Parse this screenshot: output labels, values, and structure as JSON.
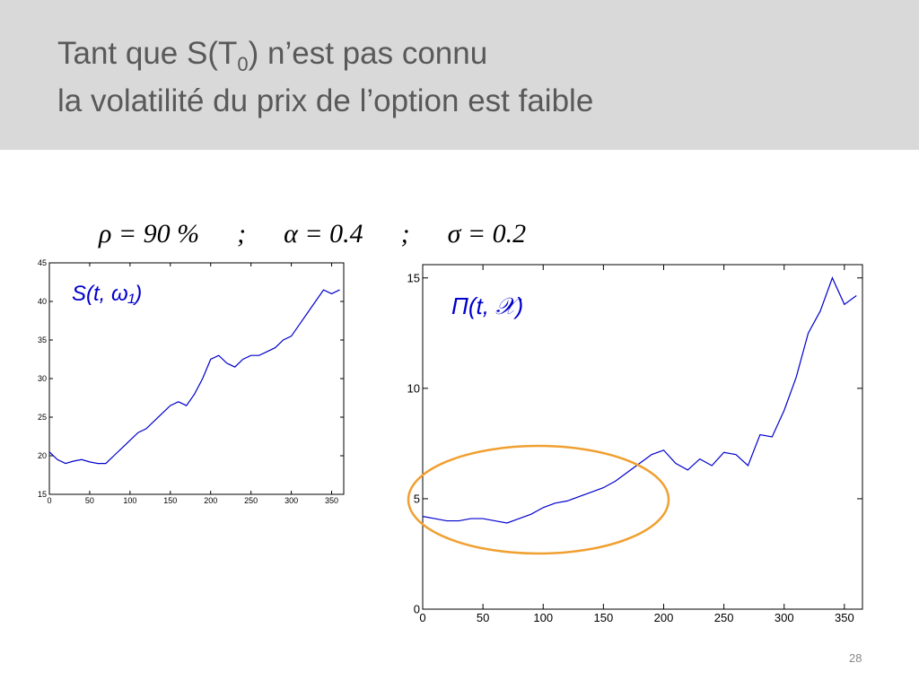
{
  "slide": {
    "title_line1": {
      "before": "Tant que S(T",
      "sub": "0",
      "after": ") n’est pas connu"
    },
    "title_line2": "la volatilité du prix de l’option est faible",
    "parameters": [
      "ρ = 90 %",
      ";",
      "α = 0.4",
      ";",
      "σ = 0.2"
    ],
    "page_number": "28"
  },
  "chart_data": [
    {
      "type": "line",
      "annotation": "S(t, ω₁)",
      "color": "#0000cc",
      "x": [
        0,
        10,
        20,
        30,
        40,
        50,
        60,
        70,
        80,
        90,
        100,
        110,
        120,
        130,
        140,
        150,
        160,
        170,
        180,
        190,
        200,
        210,
        220,
        230,
        240,
        250,
        260,
        270,
        280,
        290,
        300,
        310,
        320,
        330,
        340,
        350,
        360
      ],
      "series": [
        {
          "values": [
            20.5,
            19.5,
            19,
            19.3,
            19.5,
            19.2,
            19,
            19,
            20,
            21,
            22,
            23,
            23.5,
            24.5,
            25.5,
            26.5,
            27,
            26.5,
            28,
            30,
            32.5,
            33,
            32,
            31.5,
            32.5,
            33,
            33,
            33.5,
            34,
            35,
            35.5,
            37,
            38.5,
            40,
            41.5,
            41,
            41.5
          ]
        }
      ],
      "xlim": [
        0,
        365
      ],
      "xticks": [
        0,
        50,
        100,
        150,
        200,
        250,
        300,
        350
      ],
      "ylim": [
        15,
        45
      ],
      "yticks": [
        15,
        20,
        25,
        30,
        35,
        40,
        45
      ]
    },
    {
      "type": "line",
      "annotation": "Π(t, 𝒳)",
      "color": "#0000cc",
      "x": [
        0,
        10,
        20,
        30,
        40,
        50,
        60,
        70,
        80,
        90,
        100,
        110,
        120,
        130,
        140,
        150,
        160,
        170,
        180,
        190,
        200,
        210,
        220,
        230,
        240,
        250,
        260,
        270,
        280,
        290,
        300,
        310,
        320,
        330,
        340,
        350,
        360
      ],
      "series": [
        {
          "values": [
            4.2,
            4.1,
            4.0,
            4.0,
            4.1,
            4.1,
            4.0,
            3.9,
            4.1,
            4.3,
            4.6,
            4.8,
            4.9,
            5.1,
            5.3,
            5.5,
            5.8,
            6.2,
            6.6,
            7.0,
            7.2,
            6.6,
            6.3,
            6.8,
            6.5,
            7.1,
            7.0,
            6.5,
            7.9,
            7.8,
            9.0,
            10.5,
            12.5,
            13.5,
            15.0,
            13.8,
            14.2
          ]
        }
      ],
      "xlim": [
        0,
        365
      ],
      "xticks": [
        0,
        50,
        100,
        150,
        200,
        250,
        300,
        350
      ],
      "ylim": [
        0,
        15.6
      ],
      "yticks": [
        0,
        5,
        10,
        15
      ]
    }
  ]
}
